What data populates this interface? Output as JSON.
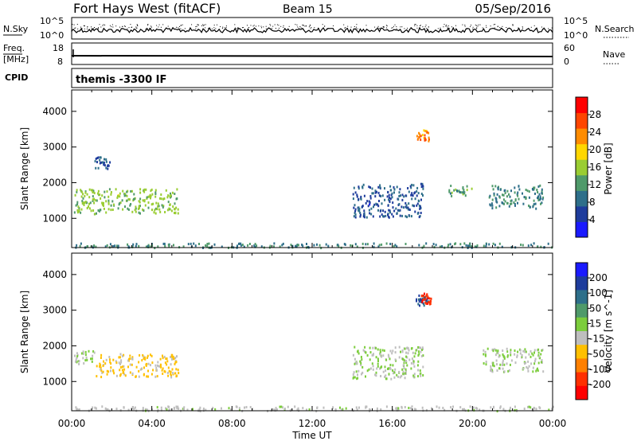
{
  "header": {
    "station": "Fort Hays West (fitACF)",
    "beam": "Beam 15",
    "date": "05/Sep/2016"
  },
  "panels": {
    "nsky_label": "N.Sky",
    "nsky_ticks": [
      "10^5",
      "10^0"
    ],
    "nsearch_label": "N.Search",
    "nsearch_ticks": [
      "10^5",
      "10^0"
    ],
    "freq_label_1": "Freq.",
    "freq_label_2": "[MHz]",
    "freq_ticks": [
      "18",
      "8"
    ],
    "nave_label": "Nave",
    "nave_ticks": [
      "60",
      "0"
    ],
    "cpid_label": "CPID",
    "cpid_text": "themis -3300 IF"
  },
  "colors": {
    "power_scale": [
      "#1a1aff",
      "#1e3c9c",
      "#2e6f8a",
      "#4f9a6a",
      "#9acd32",
      "#ffd700",
      "#ff8c00",
      "#ff4500",
      "#ff0000"
    ],
    "velocity_scale": [
      "#1a1aff",
      "#1e3c9c",
      "#2e6f8a",
      "#4f9a6a",
      "#7ccd3c",
      "#bebebe",
      "#ffc000",
      "#ff8000",
      "#ff3000",
      "#ff0000"
    ]
  },
  "chart_data": [
    {
      "type": "heatmap",
      "name": "power",
      "xlabel": "",
      "ylabel": "Slant Range [km]",
      "xlim_hours": [
        0,
        24
      ],
      "ylim_km": [
        180,
        4600
      ],
      "yticks": [
        1000,
        2000,
        3000,
        4000
      ],
      "ytick_labels": [
        "1000",
        "2000",
        "3000",
        "4000"
      ],
      "colorbar_label": "Power [dB]",
      "colorbar_ticks": [
        "4",
        "8",
        "12",
        "16",
        "20",
        "24",
        "28"
      ],
      "colorbar_range": [
        0,
        30
      ],
      "echo_regions": [
        {
          "t": [
            0.1,
            5.3
          ],
          "r": [
            1150,
            1850
          ],
          "value": 14
        },
        {
          "t": [
            0.1,
            24.0
          ],
          "r": [
            200,
            330
          ],
          "value": 10
        },
        {
          "t": [
            17.2,
            17.8
          ],
          "r": [
            3150,
            3500
          ],
          "value": 22
        },
        {
          "t": [
            14.0,
            17.5
          ],
          "r": [
            1050,
            2000
          ],
          "value": 6
        },
        {
          "t": [
            18.8,
            20.0
          ],
          "r": [
            1650,
            1950
          ],
          "value": 12
        },
        {
          "t": [
            20.8,
            23.5
          ],
          "r": [
            1300,
            1950
          ],
          "value": 10
        },
        {
          "t": [
            1.1,
            1.9
          ],
          "r": [
            2400,
            2750
          ],
          "value": 6
        }
      ]
    },
    {
      "type": "heatmap",
      "name": "velocity",
      "xlabel": "Time UT",
      "ylabel": "Slant Range [km]",
      "xlim_hours": [
        0,
        24
      ],
      "xticks": [
        "00:00",
        "04:00",
        "08:00",
        "12:00",
        "16:00",
        "20:00",
        "00:00"
      ],
      "ylim_km": [
        180,
        4600
      ],
      "yticks": [
        1000,
        2000,
        3000,
        4000
      ],
      "ytick_labels": [
        "1000",
        "2000",
        "3000",
        "4000"
      ],
      "colorbar_label": "Velocity [m s^-1]",
      "colorbar_ticks": [
        "200",
        "100",
        "50",
        "15",
        "-15",
        "-50",
        "-100",
        "-200"
      ],
      "echo_regions": [
        {
          "t": [
            1.2,
            5.3
          ],
          "r": [
            1150,
            1800
          ],
          "value": -60
        },
        {
          "t": [
            0.1,
            1.2
          ],
          "r": [
            1500,
            1900
          ],
          "value": 0
        },
        {
          "t": [
            0.1,
            24.0
          ],
          "r": [
            200,
            330
          ],
          "value": -20
        },
        {
          "t": [
            17.1,
            17.8
          ],
          "r": [
            3150,
            3450
          ],
          "value": 150
        },
        {
          "t": [
            17.4,
            17.9
          ],
          "r": [
            3200,
            3500
          ],
          "value": -180
        },
        {
          "t": [
            14.0,
            17.5
          ],
          "r": [
            1100,
            2000
          ],
          "value": 0
        },
        {
          "t": [
            20.5,
            23.5
          ],
          "r": [
            1300,
            1950
          ],
          "value": 0
        }
      ]
    }
  ]
}
